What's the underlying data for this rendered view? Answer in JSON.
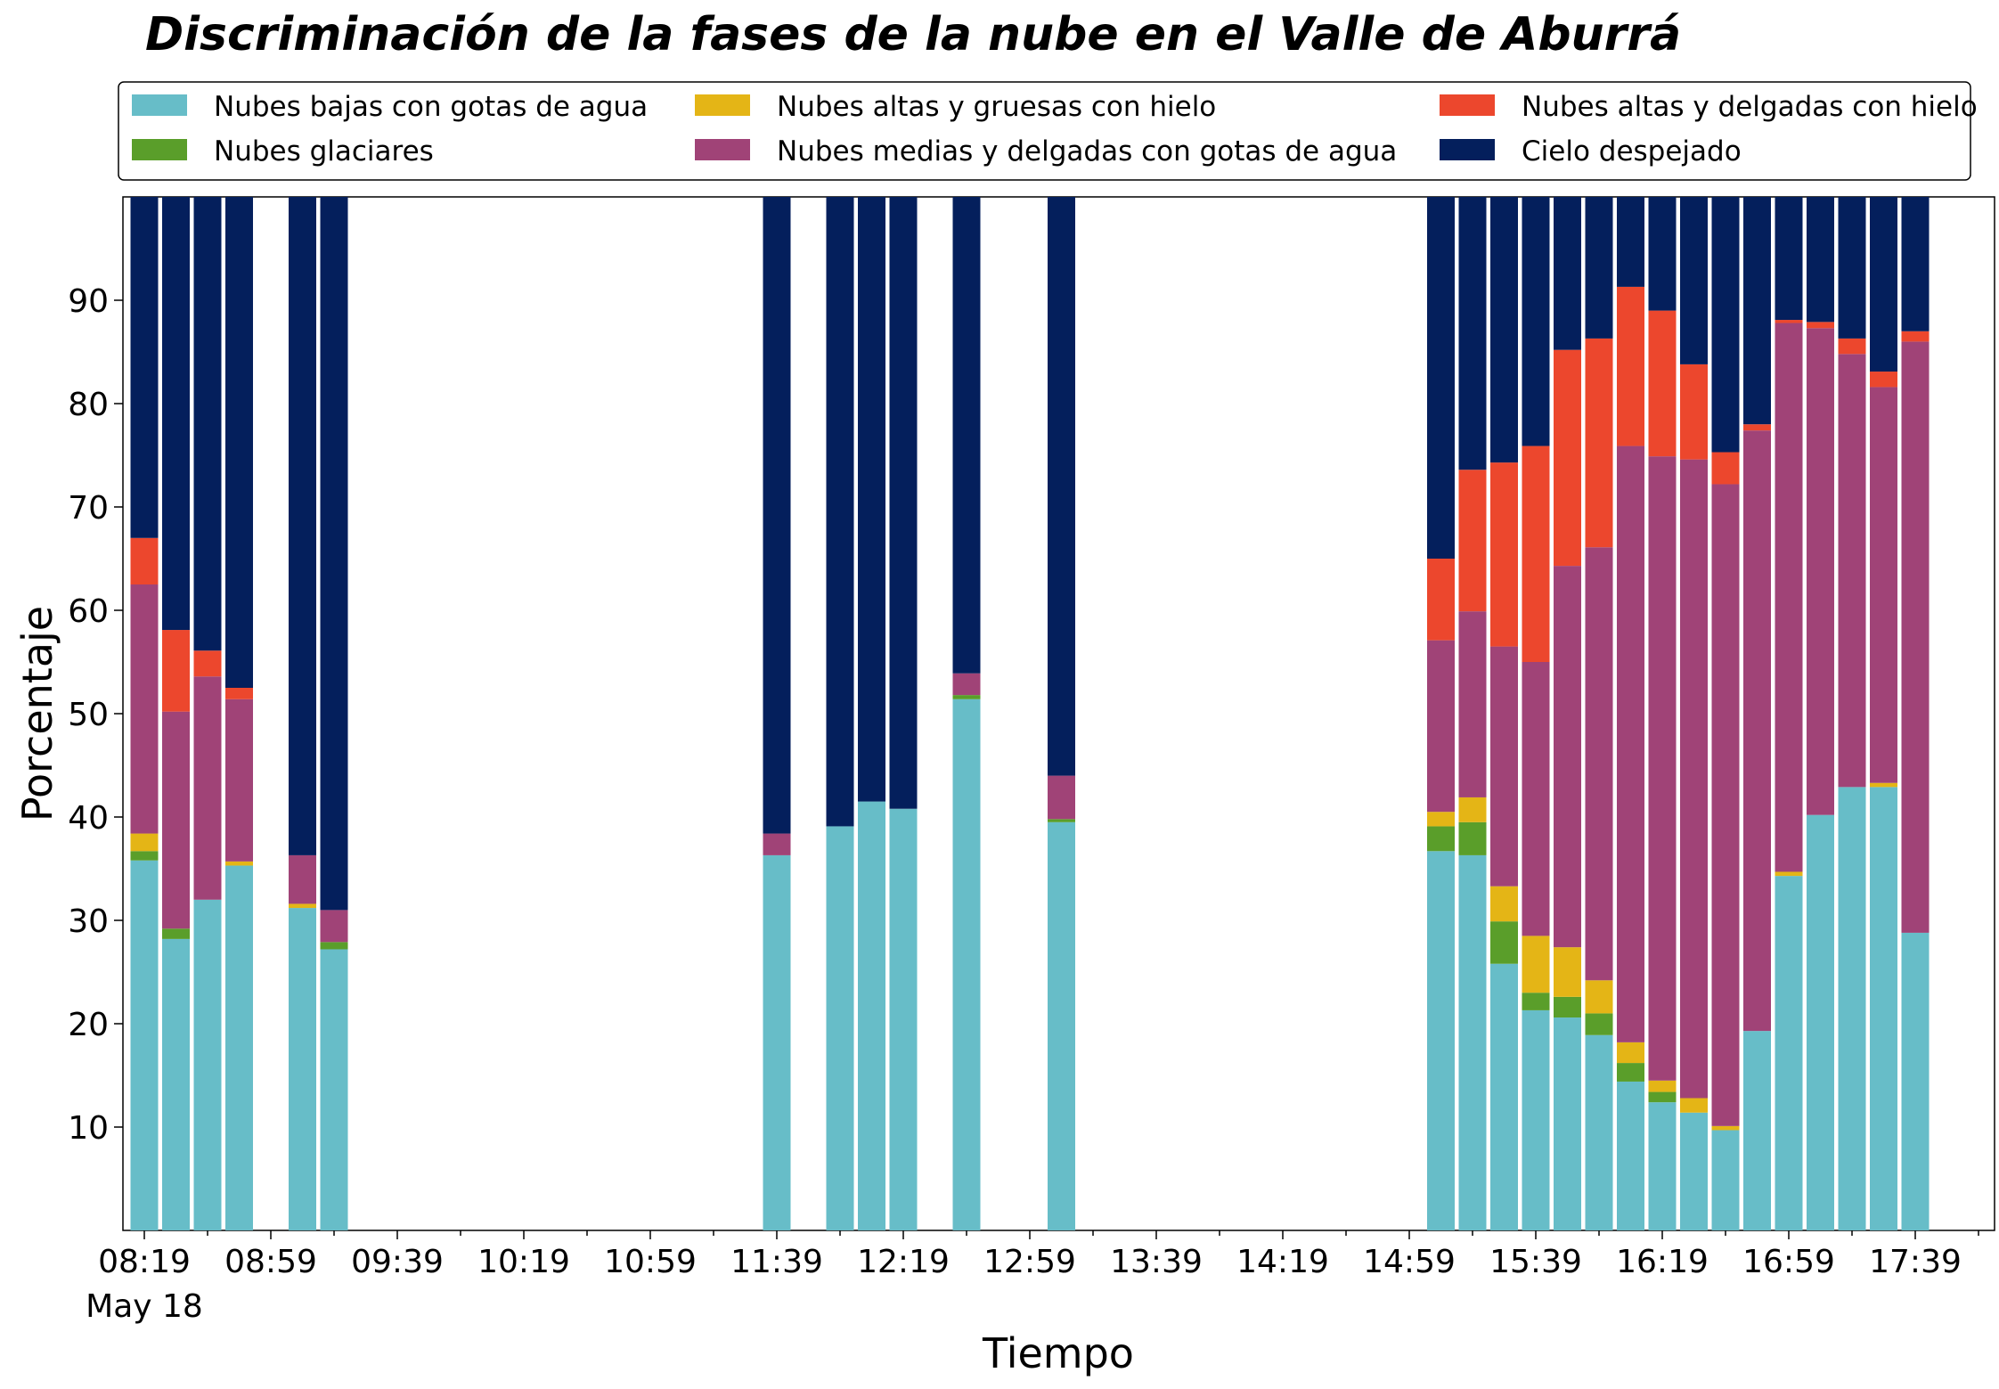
{
  "chart_data": {
    "type": "bar",
    "stacked": true,
    "title": "Discriminación de la fases de la nube en el Valle de Aburrá",
    "xlabel": "Tiempo",
    "ylabel": "Porcentaje",
    "date_label": "May 18",
    "x_tick_labels": [
      "08:19",
      "08:59",
      "09:39",
      "10:19",
      "10:59",
      "11:39",
      "12:19",
      "12:59",
      "13:39",
      "14:19",
      "14:59",
      "15:39",
      "16:19",
      "16:59",
      "17:39"
    ],
    "y_ticks": [
      10,
      20,
      30,
      40,
      50,
      60,
      70,
      80,
      90
    ],
    "ylim": [
      0,
      100
    ],
    "grid": false,
    "legend_position": "top",
    "x": [
      "08:19",
      "08:29",
      "08:39",
      "08:49",
      "09:09",
      "09:19",
      "11:39",
      "11:59",
      "12:09",
      "12:19",
      "12:39",
      "13:09",
      "15:09",
      "15:19",
      "15:29",
      "15:39",
      "15:49",
      "15:59",
      "16:09",
      "16:19",
      "16:29",
      "16:39",
      "16:49",
      "16:59",
      "17:09",
      "17:19",
      "17:29",
      "17:39"
    ],
    "series": [
      {
        "name": "Nubes bajas con gotas de agua",
        "color": "#67bdc8",
        "values": [
          35.8,
          28.2,
          32,
          35.3,
          31.2,
          27.2,
          36.3,
          39.1,
          41.5,
          40.8,
          51.4,
          39.5,
          36.7,
          36.3,
          25.8,
          21.3,
          20.6,
          18.9,
          14.4,
          12.4,
          11.4,
          9.7,
          19.3,
          34.3,
          40.2,
          42.9,
          42.9,
          28.8
        ]
      },
      {
        "name": "Nubes glaciares",
        "color": "#5a9e2a",
        "values": [
          0.9,
          1,
          0,
          0,
          0,
          0.7,
          0,
          0,
          0,
          0,
          0.4,
          0.3,
          2.4,
          3.2,
          4.1,
          1.7,
          2,
          2.1,
          1.8,
          1,
          0,
          0,
          0,
          0,
          0,
          0,
          0,
          0
        ]
      },
      {
        "name": "Nubes altas y gruesas con hielo",
        "color": "#e4b516",
        "values": [
          1.7,
          0,
          0,
          0.4,
          0.4,
          0,
          0,
          0,
          0,
          0,
          0,
          0,
          1.4,
          2.4,
          3.4,
          5.5,
          4.8,
          3.2,
          2,
          1.1,
          1.4,
          0.4,
          0,
          0.4,
          0,
          0,
          0.4,
          0
        ]
      },
      {
        "name": "Nubes medias y delgadas con gotas de agua",
        "color": "#a04377",
        "values": [
          24.1,
          21,
          21.6,
          15.7,
          4.7,
          3.1,
          2.1,
          0,
          0,
          0,
          2.1,
          4.2,
          16.6,
          18,
          23.2,
          26.5,
          36.9,
          41.9,
          57.7,
          60.4,
          61.8,
          62.1,
          58.1,
          53.1,
          47.1,
          41.9,
          38.3,
          57.2
        ]
      },
      {
        "name": "Nubes altas y delgadas con hielo",
        "color": "#ec472d",
        "values": [
          4.5,
          7.9,
          2.5,
          1.1,
          0,
          0,
          0,
          0,
          0,
          0,
          0,
          0,
          7.9,
          13.7,
          17.8,
          20.9,
          20.9,
          20.2,
          15.4,
          14.1,
          9.2,
          3.1,
          0.6,
          0.3,
          0.6,
          1.5,
          1.5,
          1
        ]
      },
      {
        "name": "Cielo despejado",
        "color": "#041f5c",
        "values": [
          33,
          41.9,
          43.9,
          47.5,
          63.7,
          69,
          61.6,
          60.9,
          58.5,
          59.2,
          46.1,
          56,
          35,
          26.4,
          25.7,
          24.1,
          14.8,
          13.7,
          8.7,
          11,
          16.2,
          24.7,
          22,
          11.9,
          12.1,
          13.7,
          16.9,
          13
        ]
      }
    ]
  }
}
